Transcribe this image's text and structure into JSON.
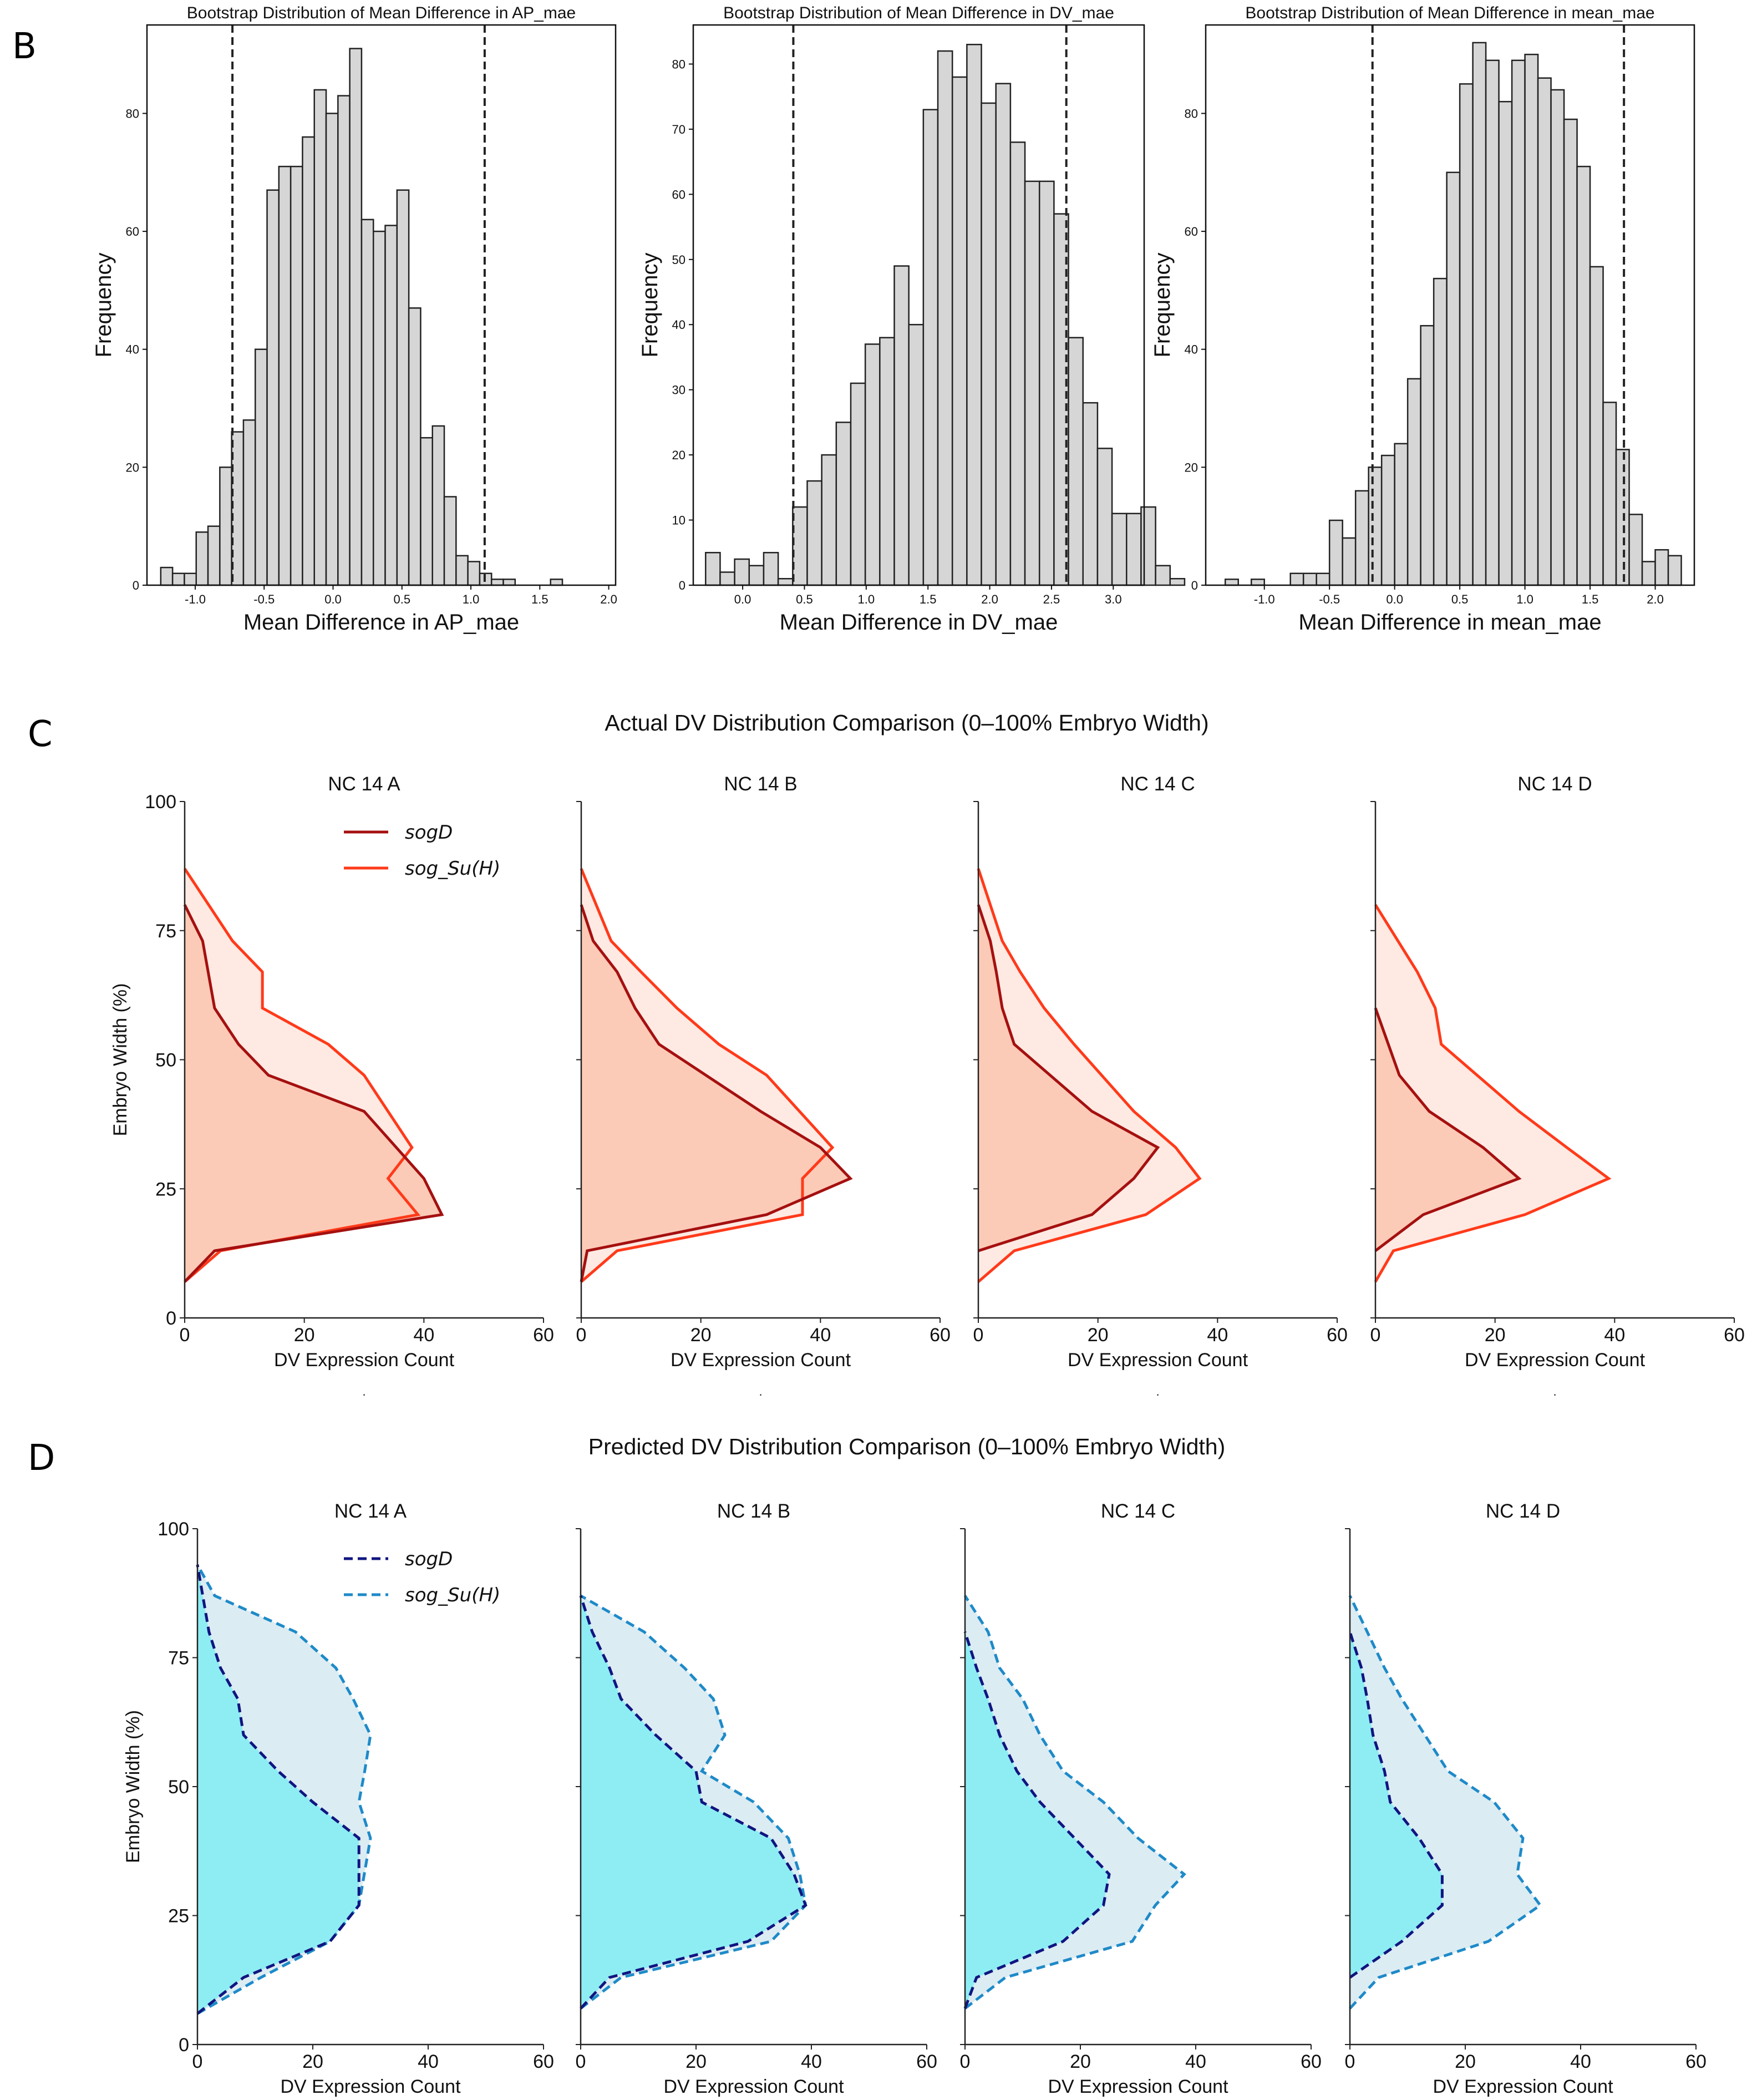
{
  "panel_labels": {
    "b": "B",
    "c": "C",
    "d": "D"
  },
  "colors": {
    "bar_fill": "#d6d6d6",
    "bar_stroke": "#222222",
    "sogD_actual": "#a51010",
    "sogSuH_actual": "#ff3a1a",
    "fill_actual_inner": "#fccbb7",
    "fill_actual_outer": "#feeae3",
    "sogD_pred": "#101580",
    "sogSuH_pred": "#1e8ac8",
    "fill_pred_inner": "#8eedf3",
    "fill_pred_outer": "#dcecf3"
  },
  "chart_data": [
    {
      "type": "bar",
      "title": "Bootstrap Distribution of Mean Difference in AP_mae",
      "xlabel": "Mean Difference in AP_mae",
      "ylabel": "Frequency",
      "xlim": [
        -1.35,
        2.05
      ],
      "ylim": [
        0,
        95
      ],
      "xticks": [
        "-1.0",
        "-0.5",
        "0.0",
        "0.5",
        "1.0",
        "1.5",
        "2.0"
      ],
      "xtick_values": [
        -1.0,
        -0.5,
        0.0,
        0.5,
        1.0,
        1.5,
        2.0
      ],
      "yticks": [
        "0",
        "20",
        "40",
        "60",
        "80"
      ],
      "ytick_values": [
        0,
        20,
        40,
        60,
        80
      ],
      "bin_start": -1.25,
      "bin_width": 0.0857,
      "values": [
        3,
        2,
        2,
        9,
        10,
        20,
        26,
        28,
        40,
        67,
        71,
        71,
        76,
        84,
        80,
        83,
        91,
        62,
        60,
        61,
        67,
        47,
        25,
        27,
        15,
        5,
        4,
        2,
        1,
        1,
        0,
        0,
        0,
        1
      ],
      "ci_lines": [
        -0.73,
        1.1
      ]
    },
    {
      "type": "bar",
      "title": "Bootstrap Distribution of Mean Difference in DV_mae",
      "xlabel": "Mean Difference in DV_mae",
      "ylabel": "Frequency",
      "xlim": [
        -0.4,
        3.25
      ],
      "ylim": [
        0,
        86
      ],
      "xticks": [
        "0.0",
        "0.5",
        "1.0",
        "1.5",
        "2.0",
        "2.5",
        "3.0"
      ],
      "xtick_values": [
        0.0,
        0.5,
        1.0,
        1.5,
        2.0,
        2.5,
        3.0
      ],
      "yticks": [
        "0",
        "10",
        "20",
        "30",
        "40",
        "50",
        "60",
        "70",
        "80"
      ],
      "ytick_values": [
        0,
        10,
        20,
        30,
        40,
        50,
        60,
        70,
        80
      ],
      "bin_start": -0.3,
      "bin_width": 0.1175,
      "values": [
        5,
        2,
        4,
        3,
        5,
        1,
        12,
        16,
        20,
        25,
        31,
        37,
        38,
        49,
        40,
        73,
        82,
        78,
        83,
        74,
        77,
        68,
        62,
        62,
        57,
        38,
        28,
        21,
        11,
        11,
        12,
        3,
        1
      ],
      "ci_lines": [
        0.41,
        2.62
      ]
    },
    {
      "type": "bar",
      "title": "Bootstrap Distribution of Mean Difference in mean_mae",
      "xlabel": "Mean Difference in mean_mae",
      "ylabel": "Frequency",
      "xlim": [
        -1.45,
        2.3
      ],
      "ylim": [
        0,
        95
      ],
      "xticks": [
        "-1.0",
        "-0.5",
        "0.0",
        "0.5",
        "1.0",
        "1.5",
        "2.0"
      ],
      "xtick_values": [
        -1.0,
        -0.5,
        0.0,
        0.5,
        1.0,
        1.5,
        2.0
      ],
      "yticks": [
        "0",
        "20",
        "40",
        "60",
        "80"
      ],
      "ytick_values": [
        0,
        20,
        40,
        60,
        80
      ],
      "bin_start": -1.3,
      "bin_width": 0.1,
      "values": [
        1,
        0,
        1,
        0,
        0,
        2,
        2,
        2,
        11,
        8,
        16,
        20,
        22,
        24,
        35,
        44,
        52,
        70,
        85,
        92,
        89,
        82,
        89,
        90,
        86,
        84,
        79,
        71,
        54,
        31,
        23,
        12,
        4,
        6,
        5
      ],
      "ci_lines": [
        -0.17,
        1.76
      ]
    }
  ],
  "profiles": {
    "actual": {
      "title": "Actual DV Distribution Comparison (0–100% Embryo Width)",
      "xlabel": "DV Expression Count",
      "ylabel": "Embryo Width (%)",
      "xticks": [
        "0",
        "20",
        "40",
        "60"
      ],
      "yticks": [
        "0",
        "25",
        "50",
        "75",
        "100"
      ],
      "xlim": [
        0,
        60
      ],
      "ylim": [
        0,
        100
      ],
      "legend": [
        "sogD",
        "sog_Su(H)"
      ],
      "footnote": ".",
      "panels": [
        {
          "title": "NC 14 A",
          "sogD": [
            [
              0,
              7
            ],
            [
              5,
              13
            ],
            [
              43,
              20
            ],
            [
              40,
              27
            ],
            [
              30,
              40
            ],
            [
              14,
              47
            ],
            [
              9,
              53
            ],
            [
              5,
              60
            ],
            [
              3,
              73
            ],
            [
              0,
              80
            ]
          ],
          "sogSuH": [
            [
              0,
              7
            ],
            [
              6,
              13
            ],
            [
              39,
              20
            ],
            [
              34,
              27
            ],
            [
              38,
              33
            ],
            [
              30,
              47
            ],
            [
              24,
              53
            ],
            [
              13,
              60
            ],
            [
              13,
              67
            ],
            [
              8,
              73
            ],
            [
              0,
              87
            ]
          ]
        },
        {
          "title": "NC 14 B",
          "sogD": [
            [
              0,
              7
            ],
            [
              1,
              13
            ],
            [
              31,
              20
            ],
            [
              45,
              27
            ],
            [
              40,
              33
            ],
            [
              30,
              40
            ],
            [
              13,
              53
            ],
            [
              9,
              60
            ],
            [
              6,
              67
            ],
            [
              2,
              73
            ],
            [
              0,
              80
            ]
          ],
          "sogSuH": [
            [
              0,
              7
            ],
            [
              6,
              13
            ],
            [
              37,
              20
            ],
            [
              37,
              27
            ],
            [
              42,
              33
            ],
            [
              31,
              47
            ],
            [
              23,
              53
            ],
            [
              16,
              60
            ],
            [
              10,
              67
            ],
            [
              5,
              73
            ],
            [
              0,
              87
            ]
          ]
        },
        {
          "title": "NC 14 C",
          "sogD": [
            [
              0,
              13
            ],
            [
              19,
              20
            ],
            [
              26,
              27
            ],
            [
              30,
              33
            ],
            [
              19,
              40
            ],
            [
              6,
              53
            ],
            [
              4,
              60
            ],
            [
              3,
              67
            ],
            [
              2,
              73
            ],
            [
              0,
              80
            ]
          ],
          "sogSuH": [
            [
              0,
              7
            ],
            [
              6,
              13
            ],
            [
              28,
              20
            ],
            [
              37,
              27
            ],
            [
              33,
              33
            ],
            [
              26,
              40
            ],
            [
              16,
              53
            ],
            [
              11,
              60
            ],
            [
              7,
              67
            ],
            [
              4,
              73
            ],
            [
              0,
              87
            ]
          ]
        },
        {
          "title": "NC 14 D",
          "sogD": [
            [
              0,
              13
            ],
            [
              8,
              20
            ],
            [
              24,
              27
            ],
            [
              18,
              33
            ],
            [
              9,
              40
            ],
            [
              4,
              47
            ],
            [
              0,
              60
            ]
          ],
          "sogSuH": [
            [
              0,
              7
            ],
            [
              3,
              13
            ],
            [
              25,
              20
            ],
            [
              39,
              27
            ],
            [
              32,
              33
            ],
            [
              24,
              40
            ],
            [
              17,
              47
            ],
            [
              11,
              53
            ],
            [
              10,
              60
            ],
            [
              7,
              67
            ],
            [
              0,
              80
            ]
          ]
        }
      ]
    },
    "predicted": {
      "title": "Predicted DV Distribution Comparison (0–100% Embryo Width)",
      "xlabel": "DV Expression Count",
      "ylabel": "Embryo Width (%)",
      "xticks": [
        "0",
        "20",
        "40",
        "60"
      ],
      "yticks": [
        "0",
        "25",
        "50",
        "75",
        "100"
      ],
      "xlim": [
        0,
        60
      ],
      "ylim": [
        0,
        100
      ],
      "legend": [
        "sogD",
        "sog_Su(H)"
      ],
      "panels": [
        {
          "title": "NC 14 A",
          "sogD": [
            [
              0,
              6
            ],
            [
              8,
              13
            ],
            [
              23,
              20
            ],
            [
              28,
              27
            ],
            [
              28,
              40
            ],
            [
              20,
              47
            ],
            [
              14,
              53
            ],
            [
              8,
              60
            ],
            [
              7,
              67
            ],
            [
              4,
              73
            ],
            [
              2,
              80
            ],
            [
              0,
              93
            ]
          ],
          "sogSuH": [
            [
              0,
              6
            ],
            [
              11,
              13
            ],
            [
              23,
              20
            ],
            [
              28,
              27
            ],
            [
              30,
              40
            ],
            [
              28,
              47
            ],
            [
              29,
              53
            ],
            [
              30,
              60
            ],
            [
              27,
              67
            ],
            [
              24,
              73
            ],
            [
              17,
              80
            ],
            [
              3,
              87
            ],
            [
              0,
              93
            ]
          ]
        },
        {
          "title": "NC 14 B",
          "sogD": [
            [
              0,
              7
            ],
            [
              5,
              13
            ],
            [
              29,
              20
            ],
            [
              39,
              27
            ],
            [
              37,
              33
            ],
            [
              33,
              40
            ],
            [
              21,
              47
            ],
            [
              20,
              53
            ],
            [
              13,
              60
            ],
            [
              7,
              67
            ],
            [
              5,
              73
            ],
            [
              2,
              80
            ],
            [
              0,
              87
            ]
          ],
          "sogSuH": [
            [
              0,
              7
            ],
            [
              7,
              13
            ],
            [
              33,
              20
            ],
            [
              39,
              27
            ],
            [
              38,
              33
            ],
            [
              36,
              40
            ],
            [
              30,
              47
            ],
            [
              21,
              53
            ],
            [
              25,
              60
            ],
            [
              23,
              67
            ],
            [
              18,
              73
            ],
            [
              11,
              80
            ],
            [
              0,
              87
            ]
          ]
        },
        {
          "title": "NC 14 C",
          "sogD": [
            [
              0,
              7
            ],
            [
              2,
              13
            ],
            [
              17,
              20
            ],
            [
              24,
              27
            ],
            [
              25,
              33
            ],
            [
              19,
              40
            ],
            [
              13,
              47
            ],
            [
              9,
              53
            ],
            [
              6,
              60
            ],
            [
              4,
              67
            ],
            [
              2,
              73
            ],
            [
              0,
              80
            ]
          ],
          "sogSuH": [
            [
              0,
              7
            ],
            [
              7,
              13
            ],
            [
              29,
              20
            ],
            [
              33,
              27
            ],
            [
              38,
              33
            ],
            [
              30,
              40
            ],
            [
              24,
              47
            ],
            [
              17,
              53
            ],
            [
              13,
              60
            ],
            [
              10,
              67
            ],
            [
              6,
              73
            ],
            [
              4,
              80
            ],
            [
              0,
              87
            ]
          ]
        },
        {
          "title": "NC 14 D",
          "sogD": [
            [
              0,
              13
            ],
            [
              9,
              20
            ],
            [
              16,
              27
            ],
            [
              16,
              33
            ],
            [
              12,
              40
            ],
            [
              7,
              47
            ],
            [
              6,
              53
            ],
            [
              4,
              60
            ],
            [
              3,
              67
            ],
            [
              2,
              73
            ],
            [
              0,
              80
            ]
          ],
          "sogSuH": [
            [
              0,
              7
            ],
            [
              5,
              13
            ],
            [
              24,
              20
            ],
            [
              33,
              27
            ],
            [
              29,
              33
            ],
            [
              30,
              40
            ],
            [
              25,
              47
            ],
            [
              17,
              53
            ],
            [
              13,
              60
            ],
            [
              9,
              67
            ],
            [
              6,
              73
            ],
            [
              3,
              80
            ],
            [
              0,
              87
            ]
          ]
        }
      ]
    }
  }
}
